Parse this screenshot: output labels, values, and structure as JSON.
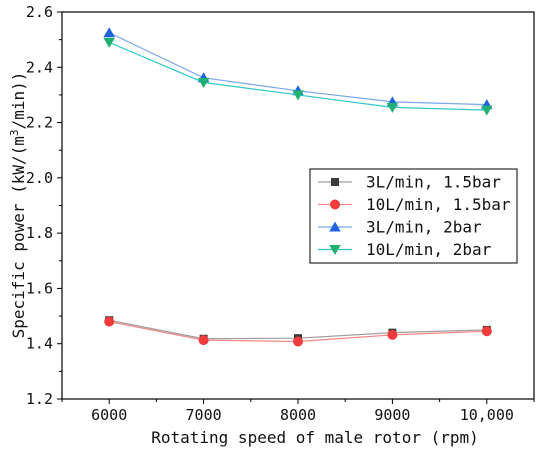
{
  "chart_data": {
    "type": "line",
    "xlabel": "Rotating speed of male rotor (rpm)",
    "ylabel_prefix": "Specific power (kW/(m",
    "ylabel_sup": "3",
    "ylabel_suffix": "/min))",
    "x": [
      6000,
      7000,
      8000,
      9000,
      10000
    ],
    "xtick_labels": [
      "6000",
      "7000",
      "8000",
      "9000",
      "10,000"
    ],
    "ylim": [
      1.2,
      2.6
    ],
    "yticks": [
      1.2,
      1.4,
      1.6,
      1.8,
      2.0,
      2.2,
      2.4,
      2.6
    ],
    "ytick_labels": [
      "1.2",
      "1.4",
      "1.6",
      "1.8",
      "2.0",
      "2.2",
      "2.4",
      "2.6"
    ],
    "grid": false,
    "legend_position": "center-right",
    "series": [
      {
        "name": "3L/min, 1.5bar",
        "values": [
          1.485,
          1.418,
          1.42,
          1.44,
          1.45
        ],
        "marker": "square",
        "color": "#3a3a3a",
        "line_color": "#9e9e9e"
      },
      {
        "name": "10L/min, 1.5bar",
        "values": [
          1.48,
          1.413,
          1.408,
          1.432,
          1.445
        ],
        "marker": "circle",
        "color": "#f03c3c",
        "line_color": "#f08a8a"
      },
      {
        "name": "3L/min, 2bar",
        "values": [
          2.525,
          2.362,
          2.315,
          2.275,
          2.265
        ],
        "marker": "triangle-up",
        "color": "#1f63e0",
        "line_color": "#7aa6ee"
      },
      {
        "name": "10L/min, 2bar",
        "values": [
          2.49,
          2.345,
          2.3,
          2.255,
          2.245
        ],
        "marker": "triangle-down",
        "color": "#20b070",
        "line_color": "#30c8c8"
      }
    ]
  }
}
